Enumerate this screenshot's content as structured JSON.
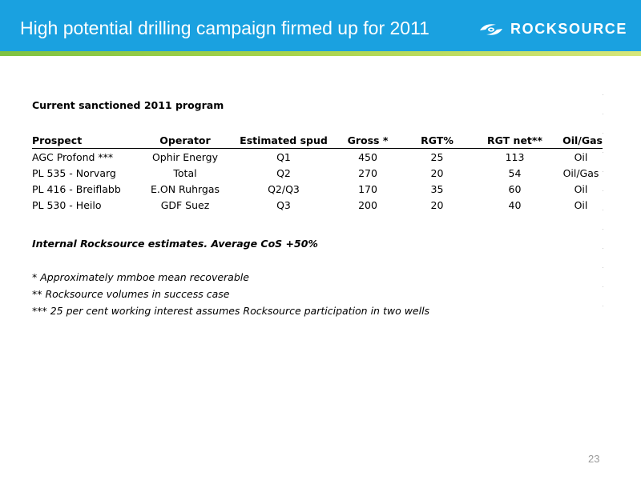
{
  "slide": {
    "title": "High potential drilling campaign firmed up for 2011",
    "logo_text": "ROCKSOURCE",
    "logo_icon": "rocksource-swirl-icon",
    "page_number": "23",
    "colors": {
      "header": "#1aa1e0",
      "accent": "#8dc63f"
    }
  },
  "program": {
    "title": "Current sanctioned 2011 program",
    "columns": [
      "Prospect",
      "Operator",
      "Estimated spud",
      "Gross *",
      "RGT%",
      "RGT net**",
      "Oil/Gas"
    ],
    "rows": [
      [
        "AGC Profond ***",
        "Ophir Energy",
        "Q1",
        "450",
        "25",
        "113",
        "Oil"
      ],
      [
        "PL 535 - Norvarg",
        "Total",
        "Q2",
        "270",
        "20",
        "54",
        "Oil/Gas"
      ],
      [
        "PL 416 - Breiflabb",
        "E.ON Ruhrgas",
        "Q2/Q3",
        "170",
        "35",
        "60",
        "Oil"
      ],
      [
        "PL 530 - Heilo",
        "GDF Suez",
        "Q3",
        "200",
        "20",
        "40",
        "Oil"
      ]
    ]
  },
  "notes": {
    "estimates": "Internal Rocksource estimates. Average CoS +50%",
    "footnotes": [
      "* Approximately mmboe mean recoverable",
      "** Rocksource volumes in success case",
      "*** 25 per cent working interest assumes Rocksource participation in two wells"
    ]
  }
}
